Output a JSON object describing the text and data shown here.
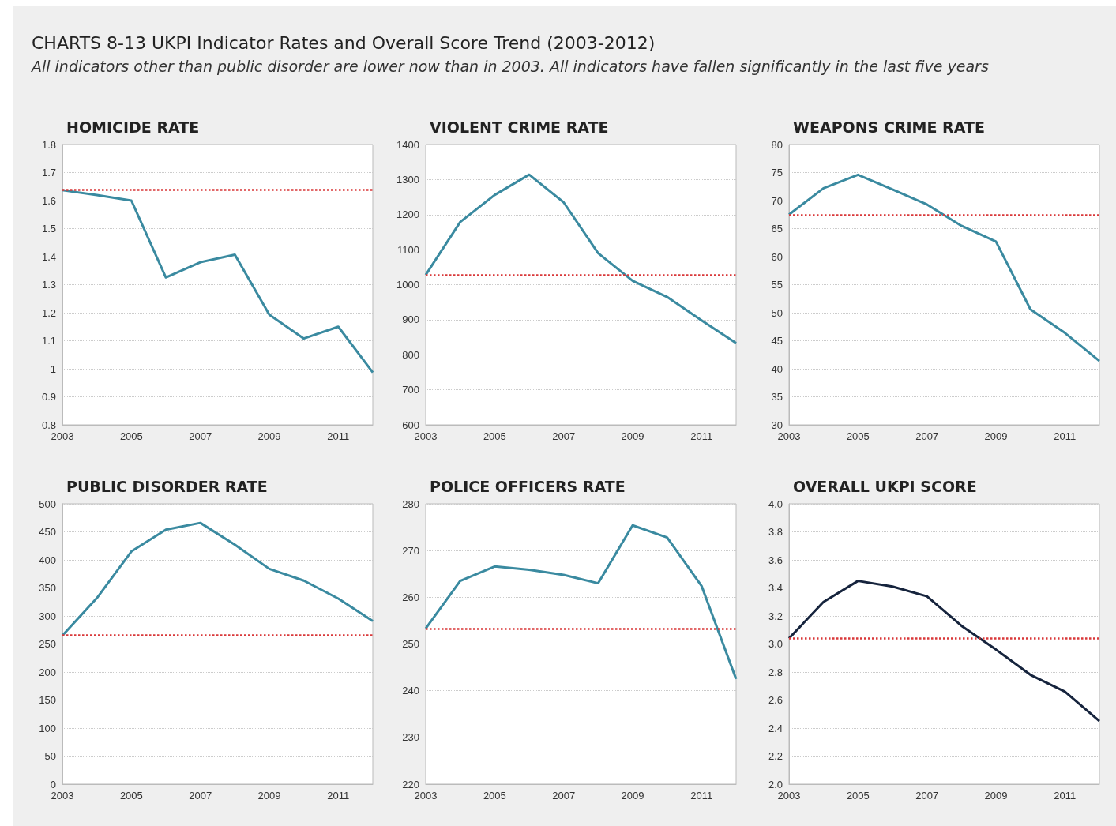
{
  "chart_data": [
    {
      "type": "other",
      "title": "CHARTS 8-13 UKPI Indicator Rates and Overall Score Trend (2003-2012)",
      "subtitle": "All indicators other than public disorder are lower now than in 2003. All indicators have fallen significantly in the last five years"
    },
    {
      "type": "line",
      "title": "HOMICIDE RATE",
      "x": [
        2003,
        2004,
        2005,
        2006,
        2007,
        2008,
        2009,
        2010,
        2011,
        2012
      ],
      "series": [
        {
          "color": "#3a8aa0",
          "values": [
            1.637,
            1.62,
            1.6,
            1.326,
            1.38,
            1.407,
            1.193,
            1.108,
            1.15,
            0.987
          ]
        }
      ],
      "xlim": [
        2003,
        2012
      ],
      "xticks": [
        2003,
        2005,
        2007,
        2009,
        2011
      ],
      "ylim": [
        0.8,
        1.8
      ],
      "yticks": [
        0.8,
        0.9,
        1,
        1.1,
        1.2,
        1.3,
        1.4,
        1.5,
        1.6,
        1.7,
        1.8
      ],
      "ref_lines": [
        {
          "axis": "y",
          "value": 1.637,
          "color": "#d9383a",
          "line_style": "dotted"
        }
      ],
      "grid": "y",
      "marker": "none"
    },
    {
      "type": "line",
      "title": "VIOLENT CRIME RATE",
      "x": [
        2003,
        2004,
        2005,
        2006,
        2007,
        2008,
        2009,
        2010,
        2011,
        2012
      ],
      "series": [
        {
          "color": "#3a8aa0",
          "values": [
            1028,
            1179,
            1256,
            1314,
            1235,
            1090,
            1011,
            965,
            898,
            833
          ]
        }
      ],
      "xlim": [
        2003,
        2012
      ],
      "xticks": [
        2003,
        2005,
        2007,
        2009,
        2011
      ],
      "ylim": [
        600,
        1400
      ],
      "yticks": [
        600,
        700,
        800,
        900,
        1000,
        1100,
        1200,
        1300,
        1400
      ],
      "ref_lines": [
        {
          "axis": "y",
          "value": 1028,
          "color": "#d9383a",
          "line_style": "dotted"
        }
      ],
      "grid": "y",
      "marker": "none"
    },
    {
      "type": "line",
      "title": "WEAPONS CRIME RATE",
      "x": [
        2003,
        2004,
        2005,
        2006,
        2007,
        2008,
        2009,
        2010,
        2011,
        2012
      ],
      "series": [
        {
          "color": "#3a8aa0",
          "values": [
            67.5,
            72.2,
            74.6,
            72.0,
            69.3,
            65.5,
            62.7,
            50.6,
            46.4,
            41.4
          ]
        }
      ],
      "xlim": [
        2003,
        2012
      ],
      "xticks": [
        2003,
        2005,
        2007,
        2009,
        2011
      ],
      "ylim": [
        30,
        80
      ],
      "yticks": [
        30,
        35,
        40,
        45,
        50,
        55,
        60,
        65,
        70,
        75,
        80
      ],
      "ref_lines": [
        {
          "axis": "y",
          "value": 67.5,
          "color": "#d9383a",
          "line_style": "dotted"
        }
      ],
      "grid": "y",
      "marker": "none"
    },
    {
      "type": "line",
      "title": "PUBLIC DISORDER RATE",
      "x": [
        2003,
        2004,
        2005,
        2006,
        2007,
        2008,
        2009,
        2010,
        2011,
        2012
      ],
      "series": [
        {
          "color": "#3a8aa0",
          "values": [
            265,
            332,
            415,
            454,
            466,
            427,
            384,
            363,
            331,
            291
          ]
        }
      ],
      "xlim": [
        2003,
        2012
      ],
      "xticks": [
        2003,
        2005,
        2007,
        2009,
        2011
      ],
      "ylim": [
        0,
        500
      ],
      "yticks": [
        0,
        50,
        100,
        150,
        200,
        250,
        300,
        350,
        400,
        450,
        500
      ],
      "ref_lines": [
        {
          "axis": "y",
          "value": 266,
          "color": "#d9383a",
          "line_style": "dotted"
        }
      ],
      "grid": "y",
      "marker": "none"
    },
    {
      "type": "line",
      "title": "POLICE OFFICERS RATE",
      "x": [
        2003,
        2004,
        2005,
        2006,
        2007,
        2008,
        2009,
        2010,
        2011,
        2012
      ],
      "series": [
        {
          "color": "#3a8aa0",
          "values": [
            253.3,
            263.5,
            266.6,
            265.9,
            264.8,
            263,
            275.4,
            272.8,
            262.4,
            242.5
          ]
        }
      ],
      "xlim": [
        2003,
        2012
      ],
      "xticks": [
        2003,
        2005,
        2007,
        2009,
        2011
      ],
      "ylim": [
        220,
        280
      ],
      "yticks": [
        220,
        230,
        240,
        250,
        260,
        270,
        280
      ],
      "ref_lines": [
        {
          "axis": "y",
          "value": 253.3,
          "color": "#d9383a",
          "line_style": "dotted"
        }
      ],
      "grid": "y",
      "marker": "none"
    },
    {
      "type": "line",
      "title": "OVERALL UKPI SCORE",
      "x": [
        2003,
        2004,
        2005,
        2006,
        2007,
        2008,
        2009,
        2010,
        2011,
        2012
      ],
      "series": [
        {
          "color": "#16243d",
          "values": [
            3.04,
            3.3,
            3.45,
            3.41,
            3.34,
            3.13,
            2.96,
            2.78,
            2.66,
            2.45
          ]
        }
      ],
      "xlim": [
        2003,
        2012
      ],
      "xticks": [
        2003,
        2005,
        2007,
        2009,
        2011
      ],
      "ylim": [
        2.0,
        4.0
      ],
      "yticks": [
        {
          "value": 2,
          "label": "2.0"
        },
        2.2,
        2.4,
        2.6,
        2.8,
        {
          "value": 3,
          "label": "3.0"
        },
        3.2,
        3.4,
        3.6,
        3.8,
        {
          "value": 4,
          "label": "4.0"
        }
      ],
      "ref_lines": [
        {
          "axis": "y",
          "value": 3.04,
          "color": "#d9383a",
          "line_style": "dotted"
        }
      ],
      "grid": "y",
      "marker": "none"
    }
  ]
}
